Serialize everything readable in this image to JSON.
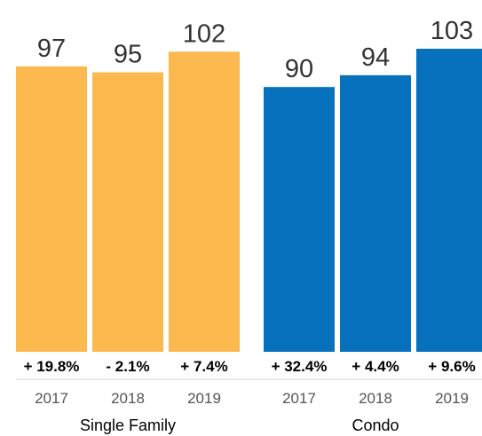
{
  "chart_data": {
    "type": "bar",
    "ylim": [
      0,
      103
    ],
    "grid": false,
    "groups": [
      {
        "name": "Single Family",
        "color": "#fbb94f",
        "categories": [
          "2017",
          "2018",
          "2019"
        ],
        "values": [
          97,
          95,
          102
        ],
        "value_labels": [
          "97",
          "95",
          "102"
        ],
        "changes": [
          "+ 19.8%",
          "- 2.1%",
          "+ 7.4%"
        ]
      },
      {
        "name": "Condo",
        "color": "#0871bd",
        "categories": [
          "2017",
          "2018",
          "2019"
        ],
        "values": [
          90,
          94,
          103
        ],
        "value_labels": [
          "90",
          "94",
          "103"
        ],
        "changes": [
          "+ 32.4%",
          "+ 4.4%",
          "+ 9.6%"
        ]
      }
    ]
  }
}
